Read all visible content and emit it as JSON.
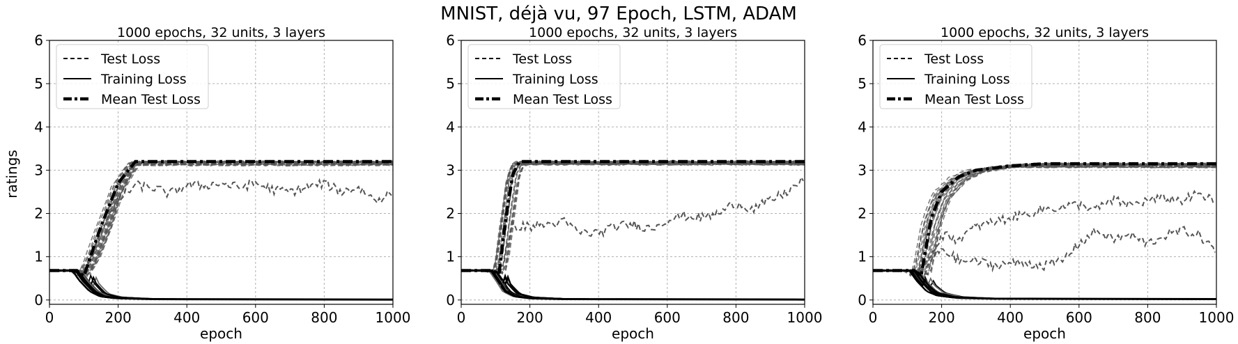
{
  "figure": {
    "suptitle": "MNIST, déjà vu, 97 Epoch, LSTM, ADAM",
    "ylabel": "ratings",
    "line_color": "#000000",
    "test_line_color": "#555555",
    "grid_color": "#b0b0b0"
  },
  "chart_data": [
    {
      "type": "line",
      "title": "1000 epochs, 32 units, 3 layers",
      "xlabel": "epoch",
      "ylabel": "ratings",
      "xlim": [
        0,
        1000
      ],
      "ylim": [
        -0.1,
        6
      ],
      "xticks": [
        0,
        200,
        400,
        600,
        800,
        1000
      ],
      "yticks": [
        0,
        1,
        2,
        3,
        4,
        5,
        6
      ],
      "grid": true,
      "legend_position": "top-left",
      "legend": [
        "Test Loss",
        "Training Loss",
        "Mean Test Loss"
      ],
      "series": [
        {
          "name": "Mean Test Loss",
          "style": "dashdot",
          "x": [
            0,
            80,
            100,
            150,
            200,
            250,
            1000
          ],
          "y": [
            0.68,
            0.68,
            0.55,
            1.7,
            2.7,
            3.2,
            3.2
          ]
        },
        {
          "name": "Training Loss",
          "style": "solid",
          "x": [
            0,
            80,
            100,
            130,
            160,
            200,
            300,
            1000
          ],
          "y": [
            0.68,
            0.68,
            0.45,
            0.2,
            0.08,
            0.04,
            0.02,
            0.01
          ]
        },
        {
          "name": "Test Loss",
          "style": "dashed",
          "note": "run with lower plateau",
          "x": [
            0,
            80,
            100,
            150,
            200,
            250,
            300,
            350,
            400,
            450,
            500,
            550,
            600,
            650,
            700,
            750,
            800,
            850,
            900,
            950,
            1000
          ],
          "y": [
            0.68,
            0.68,
            0.6,
            1.6,
            2.3,
            2.65,
            2.6,
            2.45,
            2.65,
            2.65,
            2.7,
            2.6,
            2.7,
            2.55,
            2.5,
            2.6,
            2.7,
            2.5,
            2.6,
            2.3,
            2.5
          ]
        }
      ]
    },
    {
      "type": "line",
      "title": "1000 epochs, 32 units, 3 layers",
      "xlabel": "epoch",
      "ylabel": "",
      "xlim": [
        0,
        1000
      ],
      "ylim": [
        -0.1,
        6
      ],
      "xticks": [
        0,
        200,
        400,
        600,
        800,
        1000
      ],
      "yticks": [
        0,
        1,
        2,
        3,
        4,
        5,
        6
      ],
      "grid": true,
      "legend_position": "top-left",
      "legend": [
        "Test Loss",
        "Training Loss",
        "Mean Test Loss"
      ],
      "series": [
        {
          "name": "Mean Test Loss",
          "style": "dashdot",
          "x": [
            0,
            90,
            110,
            130,
            150,
            170,
            1000
          ],
          "y": [
            0.68,
            0.68,
            0.6,
            1.9,
            2.9,
            3.2,
            3.2
          ]
        },
        {
          "name": "Training Loss",
          "style": "solid",
          "x": [
            0,
            90,
            110,
            130,
            160,
            200,
            300,
            1000
          ],
          "y": [
            0.68,
            0.68,
            0.45,
            0.2,
            0.08,
            0.04,
            0.02,
            0.01
          ]
        },
        {
          "name": "Test Loss",
          "style": "dashed",
          "note": "run with lower plateau",
          "x": [
            0,
            100,
            120,
            150,
            200,
            250,
            300,
            350,
            400,
            450,
            500,
            550,
            600,
            650,
            700,
            750,
            800,
            850,
            900,
            950,
            1000
          ],
          "y": [
            0.68,
            0.68,
            0.8,
            1.7,
            1.7,
            1.75,
            1.8,
            1.55,
            1.55,
            1.7,
            1.75,
            1.65,
            1.85,
            1.95,
            1.9,
            2.0,
            2.25,
            2.1,
            2.3,
            2.5,
            2.8
          ]
        }
      ]
    },
    {
      "type": "line",
      "title": "1000 epochs, 32 units, 3 layers",
      "xlabel": "epoch",
      "ylabel": "",
      "xlim": [
        0,
        1000
      ],
      "ylim": [
        -0.1,
        6
      ],
      "xticks": [
        0,
        200,
        400,
        600,
        800,
        1000
      ],
      "yticks": [
        0,
        1,
        2,
        3,
        4,
        5,
        6
      ],
      "grid": true,
      "legend_position": "top-left",
      "legend": [
        "Test Loss",
        "Training Loss",
        "Mean Test Loss"
      ],
      "series": [
        {
          "name": "Mean Test Loss",
          "style": "dashdot",
          "x": [
            0,
            120,
            140,
            170,
            200,
            250,
            300,
            400,
            500,
            1000
          ],
          "y": [
            0.68,
            0.68,
            0.55,
            1.9,
            2.5,
            2.85,
            3.0,
            3.1,
            3.15,
            3.15
          ]
        },
        {
          "name": "Training Loss",
          "style": "solid",
          "x": [
            0,
            120,
            140,
            170,
            200,
            250,
            350,
            1000
          ],
          "y": [
            0.68,
            0.68,
            0.45,
            0.2,
            0.1,
            0.05,
            0.03,
            0.02
          ]
        },
        {
          "name": "Test Loss",
          "style": "dashed",
          "note": "run with lower plateau",
          "x": [
            0,
            130,
            150,
            200,
            250,
            300,
            350,
            400,
            450,
            500,
            550,
            600,
            650,
            700,
            750,
            800,
            850,
            900,
            950,
            1000
          ],
          "y": [
            0.68,
            0.68,
            0.8,
            1.5,
            1.4,
            1.7,
            1.8,
            1.9,
            2.0,
            2.1,
            2.15,
            2.2,
            2.1,
            2.3,
            2.2,
            2.3,
            2.35,
            2.3,
            2.45,
            2.25
          ]
        },
        {
          "name": "Test Loss",
          "style": "dashed",
          "note": "run with lowest plateau",
          "x": [
            0,
            140,
            160,
            200,
            250,
            300,
            350,
            400,
            450,
            500,
            550,
            600,
            650,
            700,
            750,
            800,
            850,
            900,
            950,
            1000
          ],
          "y": [
            0.68,
            0.68,
            0.8,
            1.2,
            0.9,
            0.9,
            0.8,
            0.85,
            0.85,
            0.8,
            0.9,
            1.3,
            1.6,
            1.4,
            1.5,
            1.3,
            1.5,
            1.6,
            1.5,
            1.1
          ]
        }
      ]
    }
  ]
}
